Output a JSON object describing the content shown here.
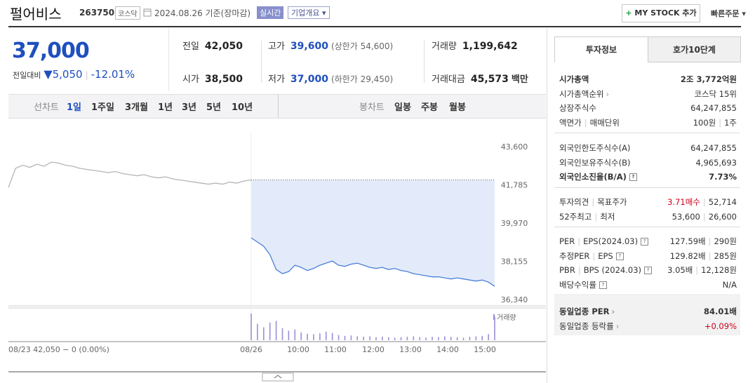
{
  "header": {
    "name": "펄어비스",
    "code": "263750",
    "market": "코스닥",
    "date": "2024.08.26 기준(장마감)",
    "realtime": "실시간",
    "overview": "기업개요",
    "mystock": "MY STOCK 추가",
    "quick_order": "빠른주문"
  },
  "quote": {
    "price": "37,000",
    "change_label": "전일대비",
    "change": "5,050",
    "rate": "-12.01%"
  },
  "stats": [
    [
      {
        "label": "전일",
        "value": "42,050"
      },
      {
        "label": "고가",
        "value": "39,600",
        "note": "(상한가 54,600)"
      },
      {
        "label": "거래량",
        "value": "1,199,642"
      }
    ],
    [
      {
        "label": "시가",
        "value": "38,500"
      },
      {
        "label": "저가",
        "value": "37,000",
        "note": "(하한가 29,450)"
      },
      {
        "label": "거래대금",
        "value": "45,573",
        "unit": "백만"
      }
    ]
  ],
  "chart_tabs": {
    "line_label": "선차트",
    "line": [
      "1일",
      "1주일",
      "3개월",
      "1년",
      "3년",
      "5년",
      "10년"
    ],
    "candle_label": "봉차트",
    "candle": [
      "일봉",
      "주봉",
      "월봉"
    ]
  },
  "chart_data": {
    "type": "line",
    "ylim": [
      36340,
      43600
    ],
    "yticks": [
      {
        "value": 43600,
        "label": "43,600"
      },
      {
        "value": 41785,
        "label": "41,785"
      },
      {
        "value": 39970,
        "label": "39,970"
      },
      {
        "value": 38155,
        "label": "38,155"
      },
      {
        "value": 36340,
        "label": "36,340"
      }
    ],
    "x_labels": [
      "08/23 42,050 − 0 (0.00%)",
      "08/26",
      "10:00",
      "11:00",
      "12:00",
      "13:00",
      "14:00",
      "15:00"
    ],
    "base": 42050,
    "series": [
      {
        "color": "#b5b5b5",
        "values": [
          41700,
          42600,
          42750,
          42650,
          42800,
          42700,
          42900,
          42850,
          42750,
          42700,
          42600,
          42550,
          42500,
          42450,
          42400,
          42450,
          42350,
          42300,
          42250,
          42300,
          42200,
          42150,
          42200,
          42100,
          42050,
          42000,
          41950,
          41900,
          41850,
          41900,
          41850,
          41950,
          41900,
          42000,
          42050
        ]
      },
      {
        "color": "#4a80d9",
        "fill": "#e3ebfa",
        "values": [
          39300,
          39100,
          38900,
          38500,
          37800,
          37600,
          37700,
          38000,
          37900,
          37750,
          37850,
          38000,
          38100,
          38200,
          38000,
          37950,
          38050,
          38100,
          38000,
          37900,
          37850,
          37900,
          37800,
          37850,
          37750,
          37700,
          37600,
          37550,
          37500,
          37450,
          37450,
          37400,
          37350,
          37400,
          37350,
          37300,
          37250,
          37300,
          37200,
          37000
        ]
      }
    ],
    "volume": {
      "label": "거래량",
      "color": "#9b8fd6",
      "values": [
        62000,
        38000,
        30000,
        41000,
        45000,
        28000,
        22000,
        25000,
        18000,
        15000,
        14000,
        16000,
        20000,
        17000,
        12000,
        10000,
        11000,
        9000,
        8000,
        9000,
        7000,
        8000,
        7000,
        6000,
        7000,
        8000,
        9000,
        7000,
        6000,
        8000,
        7000,
        9000,
        8000,
        7000,
        6000,
        8000,
        9000,
        10000,
        14000,
        55000
      ]
    }
  },
  "info": {
    "tabs": [
      "투자정보",
      "호가10단계"
    ],
    "sections": [
      [
        {
          "labels": [
            "시가총액"
          ],
          "values": [
            "2조 3,772억원"
          ],
          "bold": true
        },
        {
          "labels": [
            "시가총액순위"
          ],
          "arrow": true,
          "values": [
            "코스닥 15위"
          ]
        },
        {
          "labels": [
            "상장주식수"
          ],
          "values": [
            "64,247,855"
          ]
        },
        {
          "labels": [
            "액면가",
            "매매단위"
          ],
          "values": [
            "100원",
            "1주"
          ]
        }
      ],
      [
        {
          "labels": [
            "외국인한도주식수(A)"
          ],
          "values": [
            "64,247,855"
          ]
        },
        {
          "labels": [
            "외국인보유주식수(B)"
          ],
          "values": [
            "4,965,693"
          ]
        },
        {
          "labels": [
            "외국인소진율(B/A)"
          ],
          "help": true,
          "values": [
            "7.73%"
          ],
          "bold": true
        }
      ],
      [
        {
          "labels": [
            "투자의견",
            "목표주가"
          ],
          "values": [
            "3.71매수",
            "52,714"
          ],
          "value_colors": [
            "#d0021b",
            "#333333"
          ]
        },
        {
          "labels": [
            "52주최고",
            "최저"
          ],
          "values": [
            "53,600",
            "26,600"
          ]
        }
      ],
      [
        {
          "labels": [
            "PER",
            "EPS(2024.03)"
          ],
          "help": true,
          "values": [
            "127.59배",
            "290원"
          ]
        },
        {
          "labels": [
            "추정PER",
            "EPS"
          ],
          "help": true,
          "values": [
            "129.82배",
            "285원"
          ]
        },
        {
          "labels": [
            "PBR",
            "BPS (2024.03)"
          ],
          "help": true,
          "values": [
            "3.05배",
            "12,128원"
          ]
        },
        {
          "labels": [
            "배당수익률"
          ],
          "help": true,
          "values": [
            "N/A"
          ]
        }
      ],
      [
        {
          "labels": [
            "동일업종 PER"
          ],
          "arrow": true,
          "values": [
            "84.01배"
          ],
          "bold": true
        },
        {
          "labels": [
            "동일업종 등락률"
          ],
          "arrow": true,
          "values": [
            "+0.09%"
          ],
          "value_colors": [
            "#d0021b"
          ]
        }
      ]
    ]
  }
}
